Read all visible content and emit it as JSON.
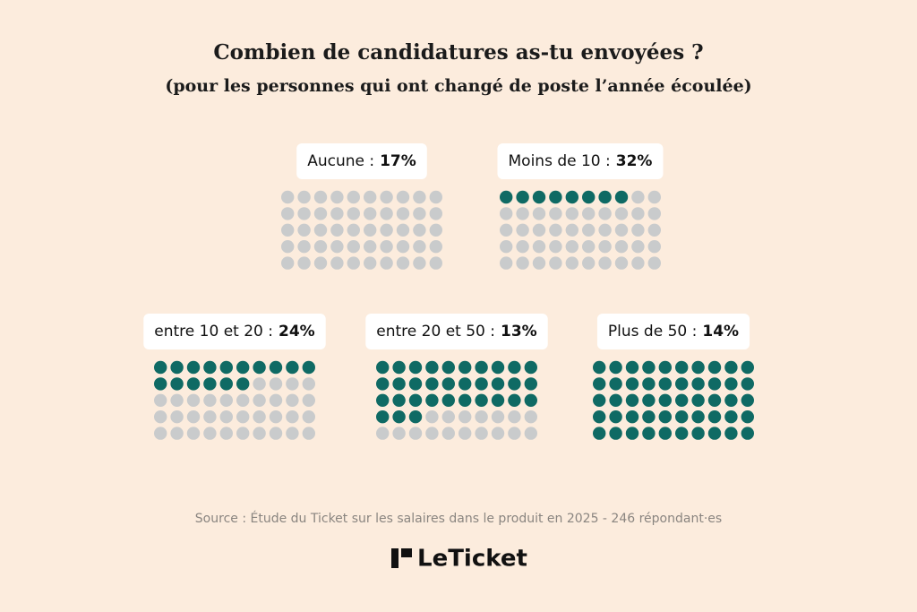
{
  "chart_data": {
    "type": "waffle",
    "title": "Combien de candidatures as-tu envoyées ?",
    "subtitle": "(pour les personnes qui ont changé de poste l’année écoulée)",
    "categories": [
      "Aucune :",
      "Moins de 10 :",
      "entre 10 et 20 :",
      "entre 20 et 50 :",
      "Plus de 50 :"
    ],
    "values": [
      17,
      32,
      24,
      13,
      14
    ],
    "value_labels": [
      "17%",
      "32%",
      "24%",
      "13%",
      "14%"
    ],
    "filled_dots": [
      0,
      8,
      16,
      33,
      50
    ],
    "dots_total": 50,
    "color": "#0f6a64",
    "empty_color": "#c9cbcc",
    "source": "Source : Étude du Ticket sur les salaires dans le produit en 2025 - 246 répondant·es",
    "logo": "LeTicket"
  }
}
